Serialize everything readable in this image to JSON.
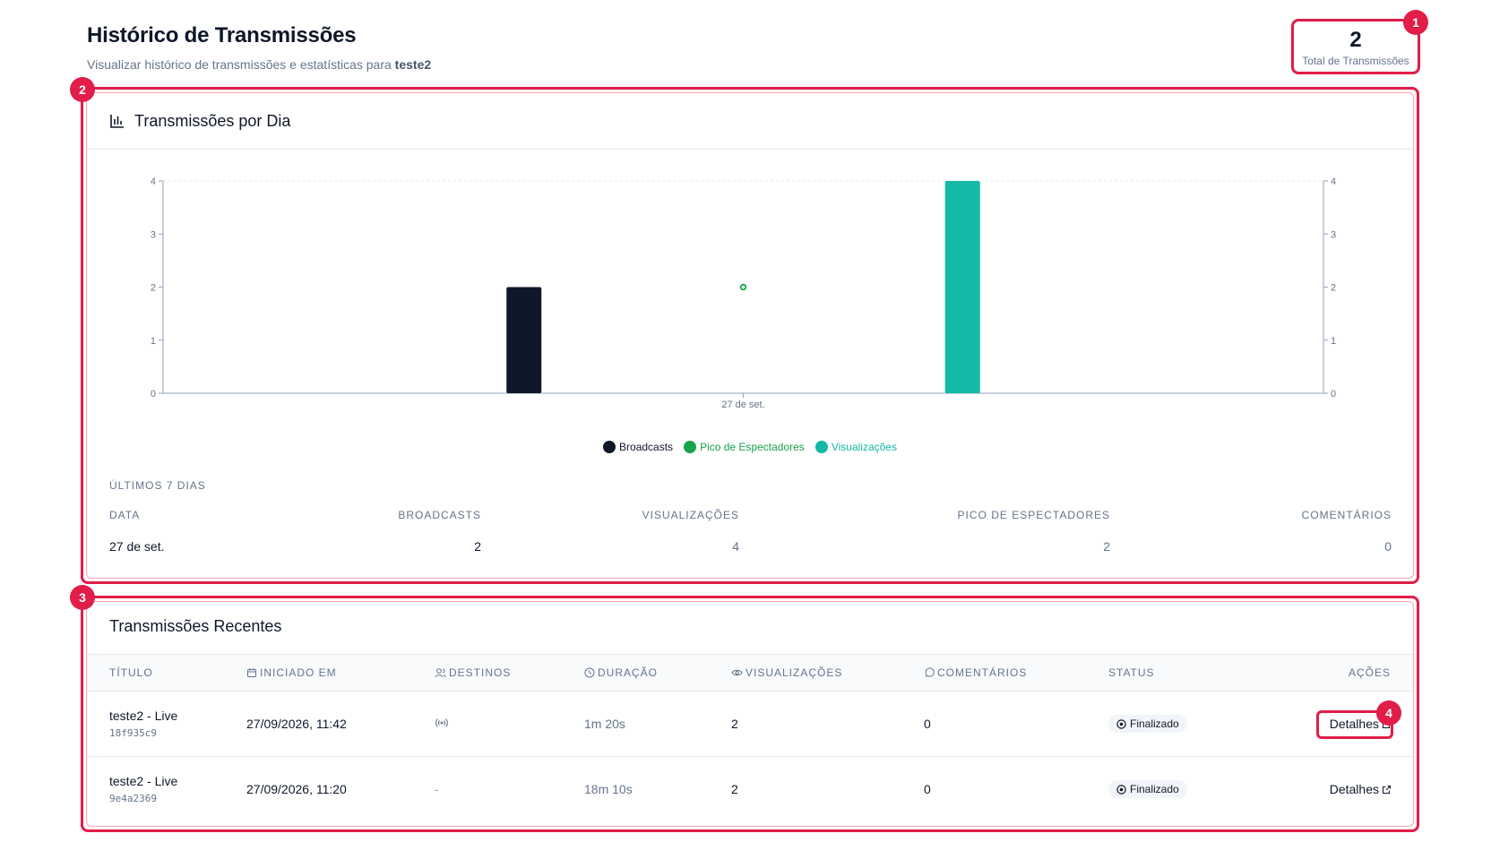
{
  "page": {
    "title": "Histórico de Transmissões",
    "subtitle_prefix": "Visualizar histórico de transmissões e estatísticas para",
    "username": "teste2"
  },
  "total": {
    "value": "2",
    "label": "Total de Transmissões"
  },
  "badges": [
    "1",
    "2",
    "3",
    "4"
  ],
  "chart_card": {
    "title": "Transmissões por Dia",
    "icon": "bar-chart-icon"
  },
  "chart_data": {
    "type": "bar",
    "categories": [
      "27 de set."
    ],
    "series": [
      {
        "name": "Broadcasts",
        "kind": "bar",
        "values": [
          2
        ],
        "color": "#0f172a"
      },
      {
        "name": "Pico de Espectadores",
        "kind": "line",
        "values": [
          2
        ],
        "color": "#16a34a"
      },
      {
        "name": "Visualizações",
        "kind": "bar",
        "values": [
          4
        ],
        "color": "#14b8a6"
      }
    ],
    "yticks": [
      "0",
      "1",
      "2",
      "3",
      "4"
    ],
    "ylim": [
      0,
      4
    ],
    "legend_position": "bottom",
    "grid": false
  },
  "weekly": {
    "label": "ÚLTIMOS 7 DIAS",
    "headers": {
      "date": "DATA",
      "broadcasts": "BROADCASTS",
      "views": "VISUALIZAÇÕES",
      "peak": "PICO DE ESPECTADORES",
      "comments": "COMENTÁRIOS"
    },
    "rows": [
      {
        "date": "27 de set.",
        "broadcasts": "2",
        "views": "4",
        "peak": "2",
        "comments": "0"
      }
    ]
  },
  "recent": {
    "title": "Transmissões Recentes",
    "headers": {
      "title": "TÍTULO",
      "started": "INICIADO EM",
      "destinations": "DESTINOS",
      "duration": "DURAÇÃO",
      "views": "VISUALIZAÇÕES",
      "comments": "COMENTÁRIOS",
      "status": "STATUS",
      "actions": "AÇÕES"
    },
    "rows": [
      {
        "title": "teste2 - Live",
        "id": "18f935c9",
        "started": "27/09/2026, 11:42",
        "destinations": "broadcast-icon",
        "duration": "1m 20s",
        "views": "2",
        "comments": "0",
        "status": "Finalizado",
        "action": "Detalhes"
      },
      {
        "title": "teste2 - Live",
        "id": "9e4a2369",
        "started": "27/09/2026, 11:20",
        "destinations": "-",
        "duration": "18m 10s",
        "views": "2",
        "comments": "0",
        "status": "Finalizado",
        "action": "Detalhes"
      }
    ]
  },
  "colors": {
    "highlight": "#e11d48",
    "primary": "#0f172a",
    "muted": "#64748b",
    "teal": "#14b8a6",
    "green": "#16a34a"
  }
}
